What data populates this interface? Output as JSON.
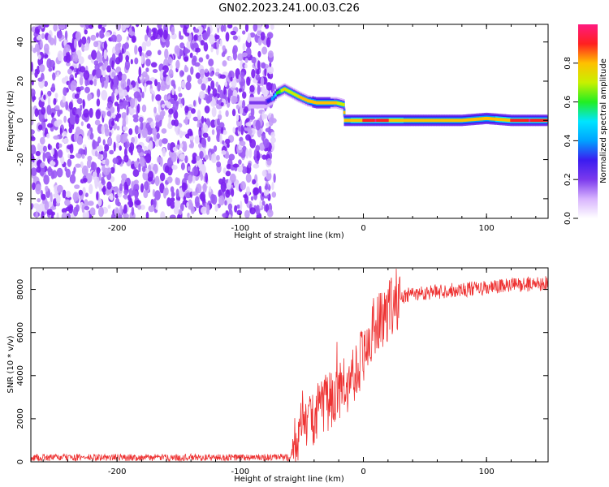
{
  "title": "GN02.2023.241.00.03.C26",
  "chart_data": [
    {
      "type": "heatmap",
      "xlabel": "Height of straight line (km)",
      "ylabel": "Frequency (Hz)",
      "xlim": [
        -270,
        150
      ],
      "ylim": [
        -50,
        49
      ],
      "xticks": [
        -200,
        -100,
        0,
        100
      ],
      "yticks": [
        -40,
        -20,
        0,
        20,
        40
      ],
      "colorbar": {
        "label": "Normalized spectral amplitude",
        "range": [
          0,
          1
        ],
        "ticks": [
          "0.0",
          "0.2",
          "0.4",
          "0.6",
          "0.8"
        ],
        "colors": [
          "#ffffff",
          "#d8b4fe",
          "#7c3aed",
          "#3b1cf0",
          "#00a2ff",
          "#00e5ff",
          "#22ee22",
          "#c8f000",
          "#ffc000",
          "#ff2020",
          "#ff1a80"
        ]
      },
      "noise_region_x": [
        -270,
        -72
      ],
      "ridge": [
        {
          "x": -92,
          "y": 9,
          "amp": 0.15
        },
        {
          "x": -80,
          "y": 9,
          "amp": 0.2
        },
        {
          "x": -74,
          "y": 11,
          "amp": 0.35
        },
        {
          "x": -70,
          "y": 14,
          "amp": 0.55
        },
        {
          "x": -64,
          "y": 16,
          "amp": 0.75
        },
        {
          "x": -58,
          "y": 14,
          "amp": 0.7
        },
        {
          "x": -52,
          "y": 12,
          "amp": 0.75
        },
        {
          "x": -45,
          "y": 10,
          "amp": 0.75
        },
        {
          "x": -38,
          "y": 9,
          "amp": 0.8
        },
        {
          "x": -30,
          "y": 9,
          "amp": 0.8
        },
        {
          "x": -22,
          "y": 9,
          "amp": 0.75
        },
        {
          "x": -16,
          "y": 8,
          "amp": 0.7
        },
        {
          "x": -15,
          "y": 0,
          "amp": 0.8
        },
        {
          "x": 0,
          "y": 0,
          "amp": 0.85
        },
        {
          "x": 10,
          "y": 0,
          "amp": 0.95
        },
        {
          "x": 20,
          "y": 0,
          "amp": 0.85
        },
        {
          "x": 40,
          "y": 0,
          "amp": 0.8
        },
        {
          "x": 60,
          "y": 0,
          "amp": 0.8
        },
        {
          "x": 80,
          "y": 0,
          "amp": 0.8
        },
        {
          "x": 100,
          "y": 1,
          "amp": 0.8
        },
        {
          "x": 120,
          "y": 0,
          "amp": 0.85
        },
        {
          "x": 135,
          "y": 0,
          "amp": 0.95
        },
        {
          "x": 150,
          "y": 0,
          "amp": 0.85
        }
      ]
    },
    {
      "type": "line",
      "xlabel": "Height of straight line (km)",
      "ylabel": "SNR (10 * v/v)",
      "xlim": [
        -270,
        150
      ],
      "ylim": [
        0,
        9000
      ],
      "xticks": [
        -200,
        -100,
        0,
        100
      ],
      "yticks": [
        0,
        2000,
        4000,
        6000,
        8000
      ],
      "color": "#ee3333",
      "series": [
        {
          "x": [
            -270,
            -200,
            -100,
            -60,
            -56,
            -50,
            -45,
            -40,
            -30,
            -20,
            -10,
            0,
            10,
            20,
            30,
            40,
            60,
            80,
            100,
            120,
            150
          ],
          "values": [
            200,
            200,
            200,
            200,
            900,
            1400,
            1800,
            2200,
            2700,
            3200,
            3900,
            5000,
            6200,
            7000,
            7600,
            7800,
            7900,
            8000,
            8050,
            8200,
            8300
          ]
        }
      ]
    }
  ]
}
